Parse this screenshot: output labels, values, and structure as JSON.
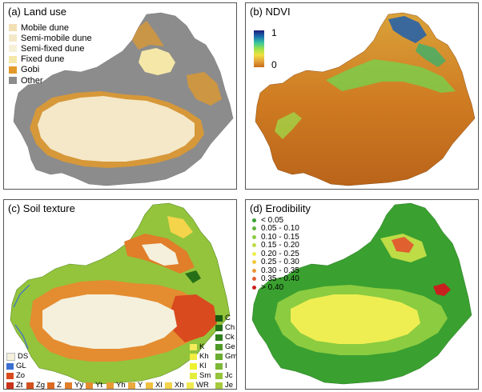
{
  "panels": {
    "land_use": {
      "title": "(a) Land use",
      "legend": [
        {
          "label": "Mobile dune",
          "color": "#f2e0b4"
        },
        {
          "label": "Semi-mobile dune",
          "color": "#f4e8c8"
        },
        {
          "label": "Semi-fixed dune",
          "color": "#f7f0d8"
        },
        {
          "label": "Fixed dune",
          "color": "#f5e7a8"
        },
        {
          "label": "Gobi",
          "color": "#e39a2a"
        },
        {
          "label": "Other",
          "color": "#8c8c8c"
        }
      ]
    },
    "ndvi": {
      "title": "(b) NDVI",
      "legend_max": "1",
      "legend_min": "0"
    },
    "soil_texture": {
      "title": "(c) Soil texture",
      "left_codes": [
        {
          "label": "DS",
          "color": "#f4f0dc"
        },
        {
          "label": "GL",
          "color": "#3a6fd0"
        },
        {
          "label": "Zo",
          "color": "#d94a1e"
        }
      ],
      "bottom_codes": [
        {
          "label": "Zt",
          "color": "#c8331a"
        },
        {
          "label": "Zg",
          "color": "#d2501e"
        },
        {
          "label": "Z",
          "color": "#dc6a22"
        },
        {
          "label": "Yy",
          "color": "#e07e2a"
        },
        {
          "label": "Yt",
          "color": "#e48c30"
        },
        {
          "label": "Yh",
          "color": "#e89a36"
        },
        {
          "label": "Y",
          "color": "#eba93e"
        },
        {
          "label": "Xl",
          "color": "#f0c040"
        },
        {
          "label": "Xh",
          "color": "#f4d44a"
        },
        {
          "label": "WR",
          "color": "#f0e84e"
        }
      ],
      "right_codes_a": [
        {
          "label": "K",
          "color": "#f4ec5a"
        },
        {
          "label": "Kh",
          "color": "#f2ee40"
        },
        {
          "label": "Kl",
          "color": "#eef030"
        },
        {
          "label": "Sm",
          "color": "#e4ec3c"
        }
      ],
      "right_codes_b": [
        {
          "label": "C",
          "color": "#1a5a12"
        },
        {
          "label": "Ch",
          "color": "#266f18"
        },
        {
          "label": "Ck",
          "color": "#30801e"
        },
        {
          "label": "Ge",
          "color": "#4f9a2a"
        },
        {
          "label": "Gm",
          "color": "#68ac30"
        },
        {
          "label": "I",
          "color": "#7cb836"
        },
        {
          "label": "Jc",
          "color": "#93c43c"
        },
        {
          "label": "Je",
          "color": "#a6cc3e"
        }
      ]
    },
    "erodibility": {
      "title": "(d) Erodibility",
      "legend": [
        {
          "label": "< 0.05",
          "color": "#3aa030"
        },
        {
          "label": "0.05 - 0.10",
          "color": "#5cb43a"
        },
        {
          "label": "0.10 - 0.15",
          "color": "#8ccc40"
        },
        {
          "label": "0.15 - 0.20",
          "color": "#bedc46"
        },
        {
          "label": "0.20 - 0.25",
          "color": "#eeee52"
        },
        {
          "label": "0.25 - 0.30",
          "color": "#f2c83e"
        },
        {
          "label": "0.30 - 0.35",
          "color": "#ee9838"
        },
        {
          "label": "0.35 - 0.40",
          "color": "#e06030"
        },
        {
          "label": "> 0.40",
          "color": "#c8201e"
        }
      ]
    }
  }
}
